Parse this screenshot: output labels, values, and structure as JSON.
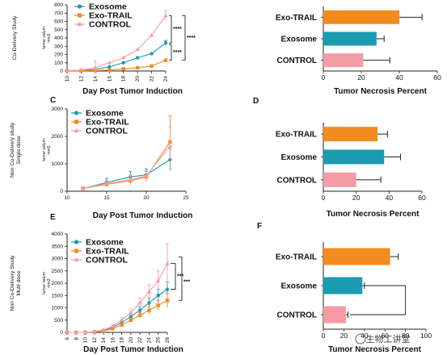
{
  "colors": {
    "exosome": "#1a9bb2",
    "exo_trail": "#f28c1e",
    "control": "#f59ba5",
    "axis": "#222222"
  },
  "series_names": [
    "Exosome",
    "Exo-TRAIL",
    "CONTROL"
  ],
  "watermark": "生物工讲堂",
  "chart_data": [
    {
      "id": "A",
      "type": "line",
      "panel_label": "",
      "ylabel": "Co-Delivery Study",
      "ylabel_small": [
        "tumor valum",
        "mm3"
      ],
      "xlabel": "Day Post Tumor Induction",
      "x": [
        10,
        12,
        14,
        16,
        18,
        20,
        22,
        24
      ],
      "xlim": [
        10,
        24
      ],
      "ylim": [
        0,
        800
      ],
      "yticks": [
        0,
        100,
        200,
        300,
        400,
        500,
        600,
        700,
        800
      ],
      "series": [
        {
          "name": "Exosome",
          "values": [
            5,
            8,
            20,
            50,
            100,
            160,
            210,
            340
          ],
          "err": [
            0,
            0,
            0,
            0,
            0,
            0,
            0,
            30
          ]
        },
        {
          "name": "Exo-TRAIL",
          "values": [
            2,
            3,
            6,
            12,
            25,
            40,
            60,
            130
          ],
          "err": [
            0,
            0,
            0,
            0,
            0,
            0,
            0,
            15
          ]
        },
        {
          "name": "CONTROL",
          "values": [
            5,
            10,
            40,
            100,
            160,
            260,
            430,
            670
          ],
          "err": [
            0,
            0,
            80,
            0,
            0,
            0,
            0,
            60
          ]
        }
      ],
      "significance": [
        "****",
        "****",
        "****"
      ],
      "legend": "top-left"
    },
    {
      "id": "B",
      "type": "bar",
      "panel_label": "",
      "xlabel": "Tumor Necrosis Percent",
      "categories": [
        "Exo-TRAIL",
        "Exosome",
        "CONTROL"
      ],
      "values": [
        40,
        28,
        21
      ],
      "err": [
        12,
        4,
        14
      ],
      "xlim": [
        0,
        60
      ],
      "xticks": [
        0,
        20,
        40,
        60
      ]
    },
    {
      "id": "C",
      "type": "line",
      "panel_label": "C",
      "ylabel": "Non Co-Delivery study Single dose",
      "ylabel_small": [
        "tumor valum",
        "mm3"
      ],
      "xlabel": "Day Post Tumor Induction",
      "x": [
        12,
        15,
        18,
        20,
        23
      ],
      "xlim": [
        10,
        25
      ],
      "ylim": [
        0,
        3000
      ],
      "yticks": [
        0,
        1000,
        2000,
        3000
      ],
      "xticks": [
        10,
        15,
        20,
        25
      ],
      "series": [
        {
          "name": "Exosome",
          "values": [
            100,
            320,
            520,
            600,
            1150
          ],
          "err": [
            60,
            150,
            200,
            220,
            400
          ]
        },
        {
          "name": "Exo-TRAIL",
          "values": [
            100,
            250,
            380,
            520,
            1800
          ],
          "err": [
            50,
            100,
            150,
            200,
            950
          ]
        },
        {
          "name": "CONTROL",
          "values": [
            100,
            280,
            420,
            560,
            1650
          ],
          "err": [
            50,
            120,
            180,
            200,
            700
          ]
        }
      ],
      "legend": "top-left"
    },
    {
      "id": "D",
      "type": "bar",
      "panel_label": "D",
      "xlabel": "Tumor Necrosis Percent",
      "categories": [
        "Exo-TRAIL",
        "Exosome",
        "CONTROL"
      ],
      "values": [
        33,
        37,
        20
      ],
      "err": [
        6,
        10,
        15
      ],
      "xlim": [
        0,
        60
      ],
      "xticks": [
        0,
        20,
        40,
        60
      ]
    },
    {
      "id": "E",
      "type": "line",
      "panel_label": "E",
      "ylabel": "Non Co-Delivery Study Multi dose",
      "ylabel_small": [
        "tumor valum",
        "mm3"
      ],
      "xlabel": "Day Post Tumor Induction",
      "x": [
        6,
        8,
        10,
        12,
        14,
        16,
        18,
        20,
        22,
        24,
        26,
        28
      ],
      "xlim": [
        6,
        28
      ],
      "ylim": [
        0,
        4000
      ],
      "yticks": [
        0,
        500,
        1000,
        1500,
        2000,
        2500,
        3000,
        3500,
        4000
      ],
      "series": [
        {
          "name": "Exosome",
          "values": [
            0,
            0,
            0,
            20,
            80,
            200,
            400,
            650,
            900,
            1200,
            1500,
            1750
          ],
          "err": [
            0,
            0,
            0,
            10,
            20,
            50,
            80,
            100,
            150,
            200,
            250,
            300
          ]
        },
        {
          "name": "Exo-TRAIL",
          "values": [
            0,
            0,
            0,
            20,
            60,
            150,
            300,
            500,
            700,
            900,
            1100,
            1300
          ],
          "err": [
            0,
            0,
            0,
            10,
            20,
            40,
            60,
            80,
            100,
            150,
            200,
            300
          ]
        },
        {
          "name": "CONTROL",
          "values": [
            0,
            0,
            0,
            30,
            100,
            250,
            500,
            800,
            1200,
            1650,
            2100,
            2800
          ],
          "err": [
            0,
            0,
            0,
            10,
            30,
            60,
            100,
            150,
            200,
            300,
            400,
            800
          ]
        }
      ],
      "significance": [
        "***",
        "***"
      ],
      "legend": "top-left"
    },
    {
      "id": "F",
      "type": "bar",
      "panel_label": "F",
      "xlabel": "Tumor Necrosis Percent",
      "categories": [
        "Exo-TRAIL",
        "Exosome",
        "CONTROL"
      ],
      "values": [
        65,
        38,
        22
      ],
      "err": [
        8,
        2,
        2
      ],
      "xlim": [
        0,
        100
      ],
      "xticks": [
        0,
        20,
        40,
        60,
        80,
        100
      ]
    }
  ]
}
